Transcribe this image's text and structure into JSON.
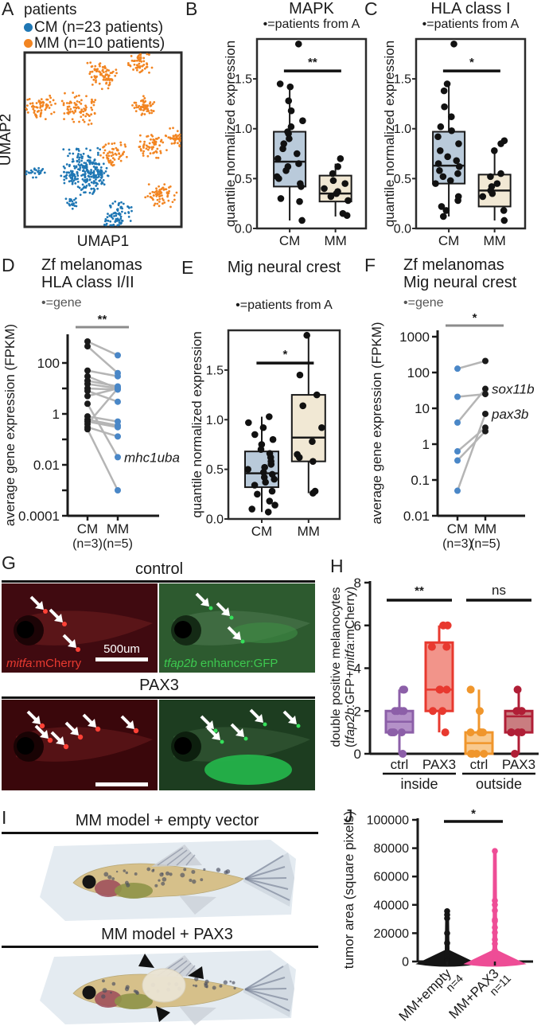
{
  "panels": {
    "A": {
      "label": "A"
    },
    "B": {
      "label": "B"
    },
    "C": {
      "label": "C"
    },
    "D": {
      "label": "D"
    },
    "E": {
      "label": "E"
    },
    "F": {
      "label": "F"
    },
    "G": {
      "label": "G",
      "groups": [
        {
          "title": "control",
          "left": {
            "label_parts": [
              {
                "t": "mitfa",
                "i": true
              },
              {
                "t": ":mCherry",
                "i": false
              }
            ],
            "label_color": "#e83a30",
            "scalebar_label": "500um",
            "arrow_count": 3
          },
          "right": {
            "label_parts": [
              {
                "t": "tfap2b",
                "i": true
              },
              {
                "t": " enhancer:GFP",
                "i": false
              }
            ],
            "label_color": "#3dc84f",
            "arrow_count": 3
          }
        },
        {
          "title": "PAX3",
          "left": {
            "arrow_count": 6
          },
          "right": {
            "arrow_count": 5
          }
        }
      ]
    },
    "H": {
      "label": "H"
    },
    "I": {
      "label": "I",
      "titles": [
        "MM model + empty vector",
        "MM model + PAX3"
      ]
    },
    "J": {
      "label": "J"
    }
  },
  "chart_data": {
    "A": {
      "type": "scatter",
      "xlabel": "UMAP1",
      "ylabel": "UMAP2",
      "legend": {
        "title": "patients",
        "items": [
          {
            "label": "CM (n=23 patients)",
            "color": "#1f77b4"
          },
          {
            "label": "MM (n=10 patients)",
            "color": "#f28522"
          }
        ]
      },
      "series": [
        {
          "name": "CM",
          "color": "#1f77b4",
          "clusters": [
            {
              "x": 0.07,
              "y": 0.69,
              "r": 0.03,
              "n": 25
            },
            {
              "x": 0.38,
              "y": 0.66,
              "r": 0.075,
              "n": 170
            },
            {
              "x": 0.47,
              "y": 0.7,
              "r": 0.035,
              "n": 40
            },
            {
              "x": 0.29,
              "y": 0.71,
              "r": 0.025,
              "n": 22
            },
            {
              "x": 0.4,
              "y": 0.77,
              "r": 0.03,
              "n": 30
            },
            {
              "x": 0.31,
              "y": 0.86,
              "r": 0.025,
              "n": 20
            },
            {
              "x": 0.6,
              "y": 0.93,
              "r": 0.05,
              "n": 80
            }
          ]
        },
        {
          "name": "MM",
          "color": "#f28522",
          "clusters": [
            {
              "x": 0.73,
              "y": 0.06,
              "r": 0.04,
              "n": 55
            },
            {
              "x": 0.5,
              "y": 0.13,
              "r": 0.05,
              "n": 80
            },
            {
              "x": 0.1,
              "y": 0.31,
              "r": 0.05,
              "n": 65
            },
            {
              "x": 0.35,
              "y": 0.32,
              "r": 0.06,
              "n": 80
            },
            {
              "x": 0.77,
              "y": 0.3,
              "r": 0.04,
              "n": 55
            },
            {
              "x": 0.97,
              "y": 0.49,
              "r": 0.04,
              "n": 40
            },
            {
              "x": 0.81,
              "y": 0.53,
              "r": 0.05,
              "n": 65
            },
            {
              "x": 0.57,
              "y": 0.58,
              "r": 0.045,
              "n": 55
            },
            {
              "x": 0.86,
              "y": 0.82,
              "r": 0.05,
              "n": 65
            }
          ]
        }
      ]
    },
    "B": {
      "type": "box",
      "title": "MAPK",
      "subtitle": "•=patients from A",
      "ylabel": "quantile normalized expression",
      "ylim": [
        0,
        1.9
      ],
      "yticks": [
        {
          "v": 0,
          "label": "0.0"
        },
        {
          "v": 0.5,
          "label": "0.5"
        },
        {
          "v": 1.0,
          "label": "1.0"
        },
        {
          "v": 1.5,
          "label": "1.5"
        }
      ],
      "significance": {
        "label": "**",
        "y": 1.58
      },
      "boxes": [
        {
          "label": "CM",
          "fill": "#b9cada",
          "min": 0.08,
          "q1": 0.42,
          "median": 0.67,
          "q3": 0.97,
          "max": 1.45,
          "points": [
            1.85,
            1.45,
            1.42,
            1.28,
            1.18,
            1.08,
            1.02,
            0.97,
            0.95,
            0.9,
            0.85,
            0.8,
            0.75,
            0.7,
            0.65,
            0.62,
            0.58,
            0.52,
            0.5,
            0.45,
            0.42,
            0.3,
            0.27,
            0.08
          ]
        },
        {
          "label": "MM",
          "fill": "#f1e8d4",
          "min": 0.12,
          "q1": 0.27,
          "median": 0.35,
          "q3": 0.53,
          "max": 0.65,
          "points": [
            0.7,
            0.62,
            0.55,
            0.48,
            0.45,
            0.4,
            0.37,
            0.35,
            0.32,
            0.28,
            0.15,
            0.13
          ]
        }
      ]
    },
    "C": {
      "type": "box",
      "title": "HLA class I",
      "subtitle": "•=patients from A",
      "ylabel": "quantile normalized expression",
      "ylim": [
        0,
        1.9
      ],
      "yticks": [
        {
          "v": 0,
          "label": "0.0"
        },
        {
          "v": 0.5,
          "label": "0.5"
        },
        {
          "v": 1.0,
          "label": "1.0"
        },
        {
          "v": 1.5,
          "label": "1.5"
        }
      ],
      "significance": {
        "label": "*",
        "y": 1.58
      },
      "boxes": [
        {
          "label": "CM",
          "fill": "#b9cada",
          "min": 0.12,
          "q1": 0.45,
          "median": 0.63,
          "q3": 0.97,
          "max": 1.45,
          "points": [
            1.85,
            1.45,
            1.38,
            1.22,
            1.12,
            1.02,
            0.98,
            0.92,
            0.85,
            0.78,
            0.72,
            0.68,
            0.65,
            0.62,
            0.58,
            0.55,
            0.52,
            0.48,
            0.45,
            0.32,
            0.28,
            0.22,
            0.18,
            0.12
          ]
        },
        {
          "label": "MM",
          "fill": "#f1e8d4",
          "min": 0.08,
          "q1": 0.22,
          "median": 0.38,
          "q3": 0.54,
          "max": 0.78,
          "points": [
            0.88,
            0.85,
            0.78,
            0.55,
            0.52,
            0.45,
            0.42,
            0.38,
            0.35,
            0.32,
            0.18,
            0.08
          ]
        }
      ]
    },
    "D": {
      "type": "paired-line",
      "title_lines": [
        "Zf melanomas",
        "HLA class I/II"
      ],
      "legend": "•=gene",
      "ylabel": "average gene expression (FPKM)",
      "yscale": "log",
      "categories": [
        "CM",
        "MM"
      ],
      "sub_labels": [
        "(n=3)",
        "(n=5)"
      ],
      "cm_color": "#1a1a1a",
      "mm_color": "#4a87c7",
      "line_color": "#b5b5b5",
      "significance": {
        "label": "**"
      },
      "yticks": [
        {
          "v": 100,
          "label": "100"
        },
        {
          "v": 10,
          "label": ""
        },
        {
          "v": 1,
          "label": "1"
        },
        {
          "v": 0.1,
          "label": ""
        },
        {
          "v": 0.01,
          "label": "0.01"
        },
        {
          "v": 0.001,
          "label": ""
        },
        {
          "v": 0.0001,
          "label": "0.0001"
        }
      ],
      "pairs": [
        [
          700,
          200
        ],
        [
          450,
          40
        ],
        [
          50,
          30
        ],
        [
          30,
          10
        ],
        [
          20,
          12
        ],
        [
          15,
          10
        ],
        [
          10,
          9
        ],
        [
          8,
          3
        ],
        [
          5,
          10
        ],
        [
          2.5,
          0.02
        ],
        [
          0.8,
          0.5
        ],
        [
          0.6,
          0.35
        ],
        [
          0.5,
          0.3
        ],
        [
          0.4,
          10
        ],
        [
          0.3,
          0.13
        ],
        [
          0.25,
          0.001
        ]
      ],
      "gene_labels": [
        {
          "text": "mhc1uba",
          "value": 0.02
        }
      ]
    },
    "E": {
      "type": "box",
      "title": "Mig neural crest",
      "subtitle": "•=patients from A",
      "ylabel": "quantile normalized expression",
      "ylim": [
        0,
        1.9
      ],
      "yticks": [
        {
          "v": 0,
          "label": "0.0"
        },
        {
          "v": 0.5,
          "label": "0.5"
        },
        {
          "v": 1.0,
          "label": "1.0"
        },
        {
          "v": 1.5,
          "label": "1.5"
        }
      ],
      "significance": {
        "label": "*",
        "y": 1.57
      },
      "boxes": [
        {
          "label": "CM",
          "fill": "#b9cada",
          "min": 0.07,
          "q1": 0.32,
          "median": 0.46,
          "q3": 0.68,
          "max": 1.03,
          "points": [
            1.03,
            0.97,
            0.92,
            0.85,
            0.8,
            0.75,
            0.7,
            0.66,
            0.62,
            0.58,
            0.55,
            0.52,
            0.5,
            0.47,
            0.45,
            0.42,
            0.4,
            0.37,
            0.34,
            0.28,
            0.25,
            0.18,
            0.14,
            0.1,
            0.07
          ]
        },
        {
          "label": "MM",
          "fill": "#f1e8d4",
          "min": 0.26,
          "q1": 0.58,
          "median": 0.82,
          "q3": 1.25,
          "max": 1.85,
          "points": [
            1.85,
            1.45,
            1.25,
            1.14,
            0.92,
            0.78,
            0.65,
            0.62,
            0.58,
            0.28,
            0.26
          ]
        }
      ]
    },
    "F": {
      "type": "paired-line",
      "title_lines": [
        "Zf melanomas",
        "Mig neural crest"
      ],
      "legend": "•=gene",
      "ylabel": "average gene expression (FPKM)",
      "yscale": "log",
      "categories": [
        "CM",
        "MM"
      ],
      "sub_labels": [
        "(n=3)",
        "(n=5)"
      ],
      "cm_color": "#4a87c7",
      "mm_color": "#1a1a1a",
      "line_color": "#b5b5b5",
      "significance": {
        "label": "*"
      },
      "yticks": [
        {
          "v": 1000,
          "label": "1000"
        },
        {
          "v": 100,
          "label": "100"
        },
        {
          "v": 10,
          "label": "10"
        },
        {
          "v": 1,
          "label": "1"
        },
        {
          "v": 0.1,
          "label": "0.1"
        },
        {
          "v": 0.01,
          "label": "0.01"
        }
      ],
      "pairs": [
        [
          128,
          210
        ],
        [
          21,
          25
        ],
        [
          4,
          35
        ],
        [
          0.63,
          2.9
        ],
        [
          0.35,
          2.3
        ],
        [
          0.05,
          7
        ]
      ],
      "gene_labels": [
        {
          "text": "sox11b",
          "value": 35
        },
        {
          "text": "pax3b",
          "value": 7
        }
      ]
    },
    "H": {
      "type": "grouped-box",
      "ylabel_line1": "double positive melanocytes",
      "ylabel_line2_parts": [
        {
          "t": "(",
          "i": false
        },
        {
          "t": "tfap2b",
          "i": true
        },
        {
          "t": ":GFP+",
          "i": false
        },
        {
          "t": "mitfa",
          "i": true
        },
        {
          "t": ":mCherry)",
          "i": false
        }
      ],
      "ylim": [
        0,
        8
      ],
      "yticks": [
        {
          "v": 0,
          "label": "0"
        },
        {
          "v": 2,
          "label": "2"
        },
        {
          "v": 4,
          "label": "4"
        },
        {
          "v": 6,
          "label": "6"
        },
        {
          "v": 8,
          "label": "8"
        }
      ],
      "groups": [
        {
          "label": "inside"
        },
        {
          "label": "outside"
        }
      ],
      "boxes": [
        {
          "label": "ctrl",
          "group": 0,
          "stroke": "#8c5fa8",
          "fill": "#b491c8",
          "min": 0,
          "q1": 1,
          "median": 1.5,
          "q3": 2,
          "max": 3,
          "points": [
            0,
            1,
            1,
            1,
            1,
            2,
            2,
            2,
            2,
            3,
            3
          ]
        },
        {
          "label": "PAX3",
          "group": 0,
          "stroke": "#e8392f",
          "fill": "#f2948a",
          "min": 1,
          "q1": 2,
          "median": 3,
          "q3": 5.2,
          "max": 6,
          "points": [
            1,
            2,
            2,
            3,
            3,
            3,
            5,
            5,
            6,
            6
          ]
        },
        {
          "label": "ctrl",
          "group": 1,
          "stroke": "#f0962c",
          "fill": "#f8c98e",
          "min": 0,
          "q1": 0,
          "median": 0.5,
          "q3": 1,
          "max": 3,
          "points": [
            0,
            0,
            0,
            0,
            1,
            1,
            1,
            1,
            2,
            3
          ]
        },
        {
          "label": "PAX3",
          "group": 1,
          "stroke": "#b01e36",
          "fill": "#c97d80",
          "min": 0,
          "q1": 1,
          "median": 1.75,
          "q3": 2,
          "max": 3,
          "points": [
            0,
            1,
            1,
            1,
            1,
            2,
            2,
            2,
            3
          ]
        }
      ],
      "significance": [
        {
          "label": "**",
          "between": [
            0,
            1
          ]
        },
        {
          "label": "ns",
          "between": [
            2,
            3
          ]
        }
      ]
    },
    "J": {
      "type": "violin",
      "ylabel": "tumor area (square pixels)",
      "ylim": [
        0,
        100000
      ],
      "yticks": [
        {
          "v": 0,
          "label": "0"
        },
        {
          "v": 20000,
          "label": "20000"
        },
        {
          "v": 40000,
          "label": "40000"
        },
        {
          "v": 60000,
          "label": "60000"
        },
        {
          "v": 80000,
          "label": "80000"
        },
        {
          "v": 100000,
          "label": "100000"
        }
      ],
      "significance": {
        "label": "*"
      },
      "series": [
        {
          "label": "MM+empty",
          "sublabel": "n=4",
          "color": "#151515",
          "points": [
            35500,
            33000,
            30500,
            20000,
            13000,
            6000,
            4000,
            2500,
            1500,
            800,
            400,
            0,
            0,
            0,
            0,
            0
          ]
        },
        {
          "label": "MM+PAX3",
          "sublabel": "n=11",
          "color": "#ee4d96",
          "points": [
            78000,
            43000,
            40000,
            36000,
            29500,
            28500,
            24000,
            20500,
            15500,
            12500,
            8000,
            4000,
            2000,
            1000,
            500,
            0,
            0,
            0,
            0
          ]
        }
      ]
    }
  }
}
